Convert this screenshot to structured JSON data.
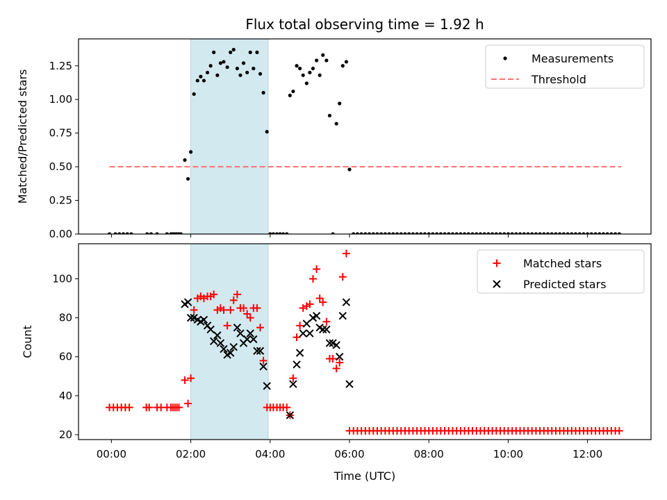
{
  "title": "Flux total observing time = 1.92 h",
  "colors": {
    "measurement": "#000000",
    "threshold": "#ff7070",
    "matched": "#ff0000",
    "predicted": "#000000",
    "highlight": "#d2e9ef"
  },
  "chart_data": [
    {
      "type": "scatter",
      "title": "Flux total observing time = 1.92 h",
      "xlabel": "",
      "ylabel": "Matched/Predicted stars",
      "x_unit": "hours UTC",
      "xlim": [
        -0.83,
        13.6
      ],
      "ylim": [
        0.0,
        1.45
      ],
      "yticks": [
        0.0,
        0.25,
        0.5,
        0.75,
        1.0,
        1.25
      ],
      "ytick_labels": [
        "0.00",
        "0.25",
        "0.50",
        "0.75",
        "1.00",
        "1.25"
      ],
      "highlight_span": [
        2.0,
        3.95
      ],
      "legend": {
        "placement": "top-right",
        "entries": [
          "Measurements",
          "Threshold"
        ]
      },
      "threshold": {
        "name": "Threshold",
        "y": 0.5,
        "x": [
          -0.05,
          12.85
        ]
      },
      "series": [
        {
          "name": "Measurements",
          "x": [
            -0.05,
            0.1,
            0.2,
            0.3,
            0.4,
            0.5,
            0.9,
            1.0,
            1.15,
            1.4,
            1.5,
            1.55,
            1.6,
            1.65,
            1.7,
            1.75,
            1.85,
            1.93,
            2.0,
            2.08,
            2.17,
            2.25,
            2.33,
            2.42,
            2.5,
            2.58,
            2.67,
            2.75,
            2.83,
            2.92,
            3.0,
            3.08,
            3.17,
            3.25,
            3.33,
            3.42,
            3.5,
            3.58,
            3.67,
            3.75,
            3.83,
            3.92,
            4.0,
            4.08,
            4.17,
            4.25,
            4.33,
            4.42,
            4.5,
            4.58,
            4.67,
            4.75,
            4.83,
            4.92,
            5.0,
            5.08,
            5.17,
            5.25,
            5.33,
            5.42,
            5.5,
            5.58,
            5.67,
            5.75,
            5.83,
            5.92,
            6.0,
            6.1,
            6.2,
            6.3,
            6.4,
            6.5,
            6.6,
            6.7,
            6.8,
            6.9,
            7.0,
            7.1,
            7.2,
            7.3,
            7.4,
            7.5,
            7.6,
            7.7,
            7.8,
            7.9,
            8.0,
            8.1,
            8.2,
            8.3,
            8.4,
            8.5,
            8.6,
            8.7,
            8.8,
            8.9,
            9.0,
            9.1,
            9.2,
            9.3,
            9.4,
            9.5,
            9.6,
            9.7,
            9.8,
            9.9,
            10.0,
            10.1,
            10.2,
            10.3,
            10.4,
            10.5,
            10.6,
            10.7,
            10.8,
            10.9,
            11.0,
            11.1,
            11.2,
            11.3,
            11.4,
            11.5,
            11.6,
            11.7,
            11.8,
            11.9,
            12.0,
            12.1,
            12.2,
            12.3,
            12.4,
            12.5,
            12.6,
            12.7,
            12.8
          ],
          "y": [
            0.0,
            0.0,
            0.0,
            0.0,
            0.0,
            0.0,
            0.0,
            0.0,
            0.0,
            0.0,
            0.0,
            0.0,
            0.0,
            0.0,
            0.0,
            0.0,
            0.55,
            0.41,
            0.61,
            1.04,
            1.14,
            1.17,
            1.14,
            1.2,
            1.25,
            1.35,
            1.18,
            1.27,
            1.28,
            1.24,
            1.35,
            1.37,
            1.23,
            1.18,
            1.27,
            1.2,
            1.35,
            1.23,
            1.35,
            1.19,
            1.05,
            0.76,
            0.0,
            0.0,
            0.0,
            0.0,
            0.0,
            0.0,
            1.03,
            1.06,
            1.25,
            1.23,
            1.18,
            1.12,
            1.2,
            1.23,
            1.29,
            1.18,
            1.33,
            1.29,
            0.88,
            0.0,
            0.82,
            0.97,
            1.25,
            1.28,
            0.48,
            0.0,
            0.0,
            0.0,
            0.0,
            0.0,
            0.0,
            0.0,
            0.0,
            0.0,
            0.0,
            0.0,
            0.0,
            0.0,
            0.0,
            0.0,
            0.0,
            0.0,
            0.0,
            0.0,
            0.0,
            0.0,
            0.0,
            0.0,
            0.0,
            0.0,
            0.0,
            0.0,
            0.0,
            0.0,
            0.0,
            0.0,
            0.0,
            0.0,
            0.0,
            0.0,
            0.0,
            0.0,
            0.0,
            0.0,
            0.0,
            0.0,
            0.0,
            0.0,
            0.0,
            0.0,
            0.0,
            0.0,
            0.0,
            0.0,
            0.0,
            0.0,
            0.0,
            0.0,
            0.0,
            0.0,
            0.0,
            0.0,
            0.0,
            0.0,
            0.0,
            0.0,
            0.0,
            0.0,
            0.0,
            0.0,
            0.0,
            0.0,
            0.0
          ]
        }
      ]
    },
    {
      "type": "scatter",
      "xlabel": "Time (UTC)",
      "ylabel": "Count",
      "x_unit": "hours UTC",
      "xlim": [
        -0.83,
        13.6
      ],
      "ylim": [
        17.5,
        118
      ],
      "xticks": [
        0,
        2,
        4,
        6,
        8,
        10,
        12
      ],
      "xtick_labels": [
        "00:00",
        "02:00",
        "04:00",
        "06:00",
        "08:00",
        "10:00",
        "12:00"
      ],
      "yticks": [
        20,
        40,
        60,
        80,
        100
      ],
      "ytick_labels": [
        "20",
        "40",
        "60",
        "80",
        "100"
      ],
      "highlight_span": [
        2.0,
        3.95
      ],
      "legend": {
        "placement": "top-right",
        "entries": [
          "Matched stars",
          "Predicted stars"
        ]
      },
      "series": [
        {
          "name": "Matched stars",
          "marker": "plus",
          "x": [
            -0.05,
            0.05,
            0.15,
            0.25,
            0.35,
            0.45,
            0.88,
            0.95,
            1.15,
            1.25,
            1.4,
            1.5,
            1.55,
            1.6,
            1.65,
            1.7,
            1.85,
            1.93,
            2.0,
            2.08,
            2.17,
            2.25,
            2.33,
            2.42,
            2.5,
            2.58,
            2.67,
            2.75,
            2.83,
            2.92,
            3.0,
            3.08,
            3.17,
            3.25,
            3.33,
            3.42,
            3.5,
            3.58,
            3.67,
            3.75,
            3.83,
            3.92,
            4.0,
            4.08,
            4.17,
            4.25,
            4.33,
            4.42,
            4.5,
            4.58,
            4.67,
            4.75,
            4.83,
            4.92,
            5.0,
            5.08,
            5.17,
            5.25,
            5.33,
            5.42,
            5.5,
            5.58,
            5.67,
            5.75,
            5.83,
            5.92,
            6.0,
            6.1,
            6.2,
            6.3,
            6.4,
            6.5,
            6.6,
            6.7,
            6.8,
            6.9,
            7.0,
            7.1,
            7.2,
            7.3,
            7.4,
            7.5,
            7.6,
            7.7,
            7.8,
            7.9,
            8.0,
            8.1,
            8.2,
            8.3,
            8.4,
            8.5,
            8.6,
            8.7,
            8.8,
            8.9,
            9.0,
            9.1,
            9.2,
            9.3,
            9.4,
            9.5,
            9.6,
            9.7,
            9.8,
            9.9,
            10.0,
            10.1,
            10.2,
            10.3,
            10.4,
            10.5,
            10.6,
            10.7,
            10.8,
            10.9,
            11.0,
            11.1,
            11.2,
            11.3,
            11.4,
            11.5,
            11.6,
            11.7,
            11.8,
            11.9,
            12.0,
            12.1,
            12.2,
            12.3,
            12.4,
            12.5,
            12.6,
            12.7,
            12.8
          ],
          "y": [
            34,
            34,
            34,
            34,
            34,
            34,
            34,
            34,
            34,
            34,
            34,
            34,
            34,
            34,
            34,
            34,
            48,
            36,
            49,
            84,
            90,
            91,
            90,
            91,
            91,
            92,
            84,
            85,
            84,
            76,
            84,
            89,
            92,
            85,
            85,
            82,
            80,
            85,
            85,
            75,
            58,
            34,
            34,
            34,
            34,
            34,
            34,
            34,
            30,
            49,
            70,
            76,
            85,
            86,
            87,
            100,
            105,
            90,
            88,
            78,
            59,
            59,
            54,
            57,
            101,
            113,
            22,
            22,
            22,
            22,
            22,
            22,
            22,
            22,
            22,
            22,
            22,
            22,
            22,
            22,
            22,
            22,
            22,
            22,
            22,
            22,
            22,
            22,
            22,
            22,
            22,
            22,
            22,
            22,
            22,
            22,
            22,
            22,
            22,
            22,
            22,
            22,
            22,
            22,
            22,
            22,
            22,
            22,
            22,
            22,
            22,
            22,
            22,
            22,
            22,
            22,
            22,
            22,
            22,
            22,
            22,
            22,
            22,
            22,
            22,
            22,
            22,
            22,
            22,
            22,
            22,
            22,
            22,
            22,
            22
          ]
        },
        {
          "name": "Predicted stars",
          "marker": "x",
          "x": [
            1.85,
            1.93,
            2.0,
            2.08,
            2.17,
            2.25,
            2.33,
            2.42,
            2.5,
            2.58,
            2.67,
            2.75,
            2.83,
            2.92,
            3.0,
            3.08,
            3.17,
            3.25,
            3.33,
            3.42,
            3.5,
            3.58,
            3.67,
            3.75,
            3.83,
            3.92,
            4.5,
            4.58,
            4.67,
            4.75,
            4.83,
            4.92,
            5.0,
            5.08,
            5.17,
            5.25,
            5.33,
            5.42,
            5.5,
            5.58,
            5.67,
            5.75,
            5.83,
            5.92,
            6.0
          ],
          "y": [
            87,
            88,
            80,
            80,
            79,
            78,
            79,
            76,
            74,
            68,
            71,
            67,
            64,
            61,
            62,
            65,
            75,
            72,
            67,
            69,
            72,
            69,
            63,
            63,
            55,
            45,
            30,
            46,
            56,
            62,
            72,
            77,
            72,
            80,
            81,
            75,
            74,
            74,
            67,
            67,
            66,
            60,
            81,
            88,
            46
          ]
        }
      ]
    }
  ]
}
